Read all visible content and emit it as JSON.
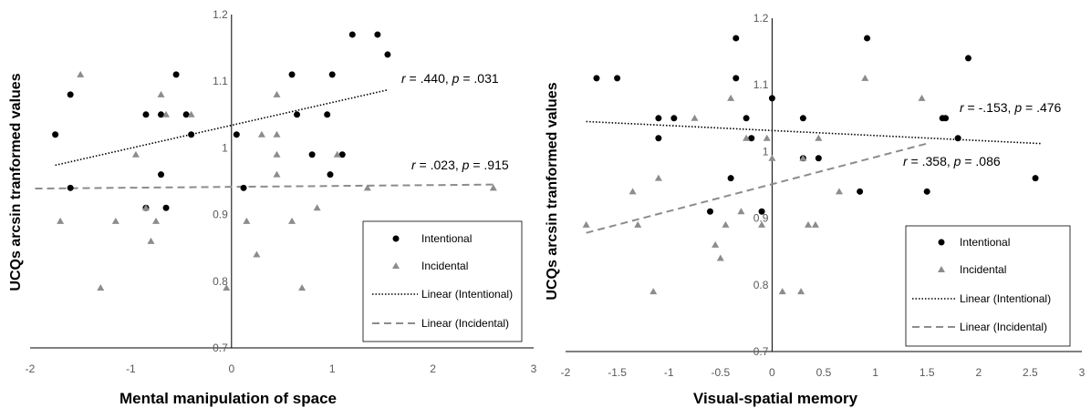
{
  "chart_data": [
    {
      "type": "scatter",
      "title": "",
      "xlabel": "Mental manipulation of space",
      "ylabel": "UCQs arcsin tranformed values",
      "xlim": [
        -2,
        3
      ],
      "ylim": [
        0.7,
        1.2
      ],
      "x_ticks": [
        "-2",
        "-1",
        "0",
        "1",
        "2",
        "3"
      ],
      "y_ticks": [
        "0.7",
        "0.8",
        "0.9",
        "1",
        "1.1",
        "1.2"
      ],
      "legend_position": "bottom-right",
      "legend": [
        "Intentional",
        "Incidental",
        "Linear (Intentional)",
        "Linear (Incidental)"
      ],
      "annotations": {
        "intentional": {
          "r_label": "r",
          "r_value": " = .440, ",
          "p_label": "p",
          "p_value": " = .031"
        },
        "incidental": {
          "r_label": "r",
          "r_value": " = .023, ",
          "p_label": "p",
          "p_value": " = .915"
        }
      },
      "series": [
        {
          "name": "Intentional",
          "marker": "circle",
          "color": "#000000",
          "points": [
            [
              -1.75,
              1.02
            ],
            [
              -1.6,
              1.08
            ],
            [
              -1.6,
              0.94
            ],
            [
              -0.85,
              1.05
            ],
            [
              -0.85,
              0.91
            ],
            [
              -0.7,
              1.05
            ],
            [
              -0.7,
              0.96
            ],
            [
              -0.65,
              0.91
            ],
            [
              -0.55,
              1.11
            ],
            [
              -0.45,
              1.05
            ],
            [
              -0.4,
              1.02
            ],
            [
              0.05,
              1.02
            ],
            [
              0.12,
              0.94
            ],
            [
              0.6,
              1.11
            ],
            [
              0.65,
              1.05
            ],
            [
              0.8,
              0.99
            ],
            [
              0.95,
              1.05
            ],
            [
              0.98,
              0.96
            ],
            [
              1.0,
              1.11
            ],
            [
              1.1,
              0.99
            ],
            [
              1.2,
              1.17
            ],
            [
              1.45,
              1.17
            ],
            [
              1.55,
              1.14
            ]
          ]
        },
        {
          "name": "Incidental",
          "marker": "triangle",
          "color": "#8c8c8c",
          "points": [
            [
              -1.7,
              0.89
            ],
            [
              -1.5,
              1.11
            ],
            [
              -1.3,
              0.79
            ],
            [
              -1.15,
              0.89
            ],
            [
              -0.95,
              0.99
            ],
            [
              -0.85,
              0.91
            ],
            [
              -0.8,
              0.86
            ],
            [
              -0.75,
              0.89
            ],
            [
              -0.7,
              1.08
            ],
            [
              -0.65,
              1.05
            ],
            [
              -0.4,
              1.05
            ],
            [
              -0.05,
              0.79
            ],
            [
              0.15,
              0.89
            ],
            [
              0.25,
              0.84
            ],
            [
              0.3,
              1.02
            ],
            [
              0.45,
              1.08
            ],
            [
              0.45,
              1.02
            ],
            [
              0.45,
              0.99
            ],
            [
              0.45,
              0.96
            ],
            [
              0.6,
              0.89
            ],
            [
              0.7,
              0.79
            ],
            [
              0.85,
              0.91
            ],
            [
              1.05,
              0.99
            ],
            [
              1.35,
              0.94
            ],
            [
              2.6,
              0.94
            ]
          ]
        }
      ],
      "trendlines": [
        {
          "name": "Linear (Intentional)",
          "style": "dotted",
          "x": [
            -1.75,
            1.55
          ],
          "y": [
            0.974,
            1.087
          ]
        },
        {
          "name": "Linear (Incidental)",
          "style": "dashed",
          "x": [
            -1.95,
            2.6
          ],
          "y": [
            0.939,
            0.945
          ]
        }
      ]
    },
    {
      "type": "scatter",
      "title": "",
      "xlabel": "Visual-spatial memory",
      "ylabel": "UCQs arcsin tranformed values",
      "xlim": [
        -2,
        3
      ],
      "ylim": [
        0.7,
        1.2
      ],
      "x_ticks": [
        "-2",
        "-1.5",
        "-1",
        "-0.5",
        "0",
        "0.5",
        "1",
        "1.5",
        "2",
        "2.5",
        "3"
      ],
      "y_ticks": [
        "0.7",
        "0.8",
        "0.9",
        "1",
        "1.1",
        "1.2"
      ],
      "legend_position": "bottom-right",
      "legend": [
        "Intentional",
        "Incidental",
        "Linear (Intentional)",
        "Linear (Incidental)"
      ],
      "annotations": {
        "intentional": {
          "r_label": "r",
          "r_value": " = -.153, ",
          "p_label": "p",
          "p_value": " = .476"
        },
        "incidental": {
          "r_label": "r",
          "r_value": " = .358, ",
          "p_label": "p",
          "p_value": " = .086"
        }
      },
      "series": [
        {
          "name": "Intentional",
          "marker": "circle",
          "color": "#000000",
          "points": [
            [
              -1.7,
              1.11
            ],
            [
              -1.5,
              1.11
            ],
            [
              -1.1,
              1.05
            ],
            [
              -1.1,
              1.02
            ],
            [
              -0.95,
              1.05
            ],
            [
              -0.6,
              0.91
            ],
            [
              -0.4,
              0.96
            ],
            [
              -0.35,
              1.17
            ],
            [
              -0.35,
              1.11
            ],
            [
              -0.25,
              1.05
            ],
            [
              -0.2,
              1.02
            ],
            [
              -0.1,
              0.91
            ],
            [
              0.0,
              1.08
            ],
            [
              0.3,
              1.05
            ],
            [
              0.3,
              0.99
            ],
            [
              0.45,
              0.99
            ],
            [
              0.85,
              0.94
            ],
            [
              0.92,
              1.17
            ],
            [
              1.5,
              0.94
            ],
            [
              1.65,
              1.05
            ],
            [
              1.68,
              1.05
            ],
            [
              1.8,
              1.02
            ],
            [
              1.9,
              1.14
            ],
            [
              2.55,
              0.96
            ]
          ]
        },
        {
          "name": "Incidental",
          "marker": "triangle",
          "color": "#8c8c8c",
          "points": [
            [
              -1.8,
              0.89
            ],
            [
              -1.35,
              0.94
            ],
            [
              -1.3,
              0.89
            ],
            [
              -1.15,
              0.79
            ],
            [
              -1.1,
              0.96
            ],
            [
              -0.75,
              1.05
            ],
            [
              -0.55,
              0.86
            ],
            [
              -0.5,
              0.84
            ],
            [
              -0.45,
              0.89
            ],
            [
              -0.4,
              1.08
            ],
            [
              -0.3,
              0.91
            ],
            [
              -0.25,
              1.02
            ],
            [
              -0.1,
              0.89
            ],
            [
              -0.05,
              1.02
            ],
            [
              0.0,
              0.99
            ],
            [
              0.1,
              0.79
            ],
            [
              0.28,
              0.79
            ],
            [
              0.3,
              0.99
            ],
            [
              0.35,
              0.89
            ],
            [
              0.42,
              0.89
            ],
            [
              0.45,
              1.02
            ],
            [
              0.65,
              0.94
            ],
            [
              0.9,
              1.11
            ],
            [
              1.45,
              1.08
            ]
          ]
        }
      ],
      "trendlines": [
        {
          "name": "Linear (Intentional)",
          "style": "dotted",
          "x": [
            -1.8,
            2.6
          ],
          "y": [
            1.045,
            1.012
          ]
        },
        {
          "name": "Linear (Incidental)",
          "style": "dashed",
          "x": [
            -1.8,
            1.5
          ],
          "y": [
            0.878,
            1.012
          ]
        }
      ]
    }
  ]
}
